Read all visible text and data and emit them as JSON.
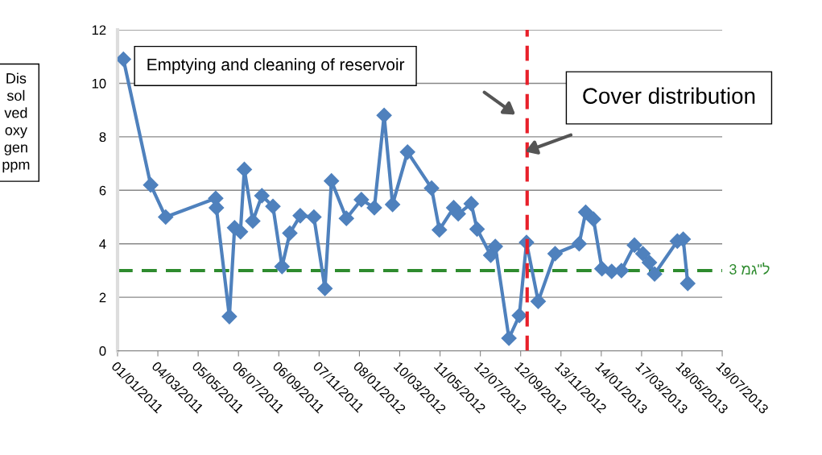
{
  "chart_data": {
    "type": "line",
    "ylabel": "Dissolved oxygen ppm",
    "x": [
      "2011-01-10",
      "2011-02-21",
      "2011-03-16",
      "2011-06-01",
      "2011-06-02",
      "2011-06-22",
      "2011-06-30",
      "2011-07-09",
      "2011-07-15",
      "2011-07-28",
      "2011-08-11",
      "2011-08-28",
      "2011-09-11",
      "2011-09-23",
      "2011-10-09",
      "2011-10-30",
      "2011-11-16",
      "2011-11-26",
      "2011-12-19",
      "2012-01-11",
      "2012-01-31",
      "2012-02-15",
      "2012-02-28",
      "2012-03-22",
      "2012-04-28",
      "2012-05-10",
      "2012-06-01",
      "2012-06-08",
      "2012-06-28",
      "2012-07-07",
      "2012-07-28",
      "2012-08-04",
      "2012-08-25",
      "2012-09-10",
      "2012-09-21",
      "2012-10-09",
      "2012-11-04",
      "2012-12-11",
      "2012-12-21",
      "2013-01-02",
      "2013-01-15",
      "2013-01-30",
      "2013-02-14",
      "2013-03-06",
      "2013-03-19",
      "2013-03-29",
      "2013-04-06",
      "2013-05-11",
      "2013-05-20",
      "2013-05-27"
    ],
    "series": [
      {
        "color": "#4f81bd",
        "values": [
          10.9,
          6.2,
          5.0,
          5.7,
          5.35,
          1.28,
          4.6,
          4.45,
          6.78,
          4.85,
          5.8,
          5.4,
          3.15,
          4.4,
          5.05,
          5.0,
          2.33,
          6.35,
          4.95,
          5.65,
          5.35,
          8.8,
          5.47,
          7.43,
          6.08,
          4.52,
          5.35,
          5.12,
          5.5,
          4.55,
          3.57,
          3.9,
          0.47,
          1.32,
          4.05,
          1.85,
          3.63,
          4.0,
          5.18,
          4.92,
          3.07,
          2.97,
          3.0,
          3.95,
          3.63,
          3.3,
          2.87,
          4.1,
          4.17,
          2.52
        ]
      }
    ],
    "marker": "diamond",
    "line_style": "solid",
    "xlim": [
      "2011-01-01",
      "2013-07-19"
    ],
    "xticks": [
      {
        "value": "2011-01-01",
        "label": "01/01/2011"
      },
      {
        "value": "2011-03-04",
        "label": "04/03/2011"
      },
      {
        "value": "2011-05-05",
        "label": "05/05/2011"
      },
      {
        "value": "2011-07-06",
        "label": "06/07/2011"
      },
      {
        "value": "2011-09-06",
        "label": "06/09/2011"
      },
      {
        "value": "2011-11-07",
        "label": "07/11/2011"
      },
      {
        "value": "2012-01-08",
        "label": "08/01/2012"
      },
      {
        "value": "2012-03-10",
        "label": "10/03/2012"
      },
      {
        "value": "2012-05-11",
        "label": "11/05/2012"
      },
      {
        "value": "2012-07-12",
        "label": "12/07/2012"
      },
      {
        "value": "2012-09-12",
        "label": "12/09/2012"
      },
      {
        "value": "2012-11-13",
        "label": "13/11/2012"
      },
      {
        "value": "2013-01-14",
        "label": "14/01/2013"
      },
      {
        "value": "2013-03-17",
        "label": "17/03/2013"
      },
      {
        "value": "2013-05-18",
        "label": "18/05/2013"
      },
      {
        "value": "2013-07-19",
        "label": "19/07/2013"
      }
    ],
    "ylim": [
      0,
      12
    ],
    "yticks": [
      0,
      2,
      4,
      6,
      8,
      10,
      12
    ],
    "grid": "y",
    "legend": false,
    "ref_lines": [
      {
        "axis": "y",
        "value": 3,
        "label": "3 מג\"ל",
        "color": "#2e8b2e",
        "line_style": "dashed"
      },
      {
        "axis": "x",
        "value": "2012-09-22",
        "color": "#e8202a",
        "line_style": "dashed"
      }
    ],
    "annotations": [
      "Emptying and cleaning of reservoir",
      "Cover distribution"
    ]
  }
}
